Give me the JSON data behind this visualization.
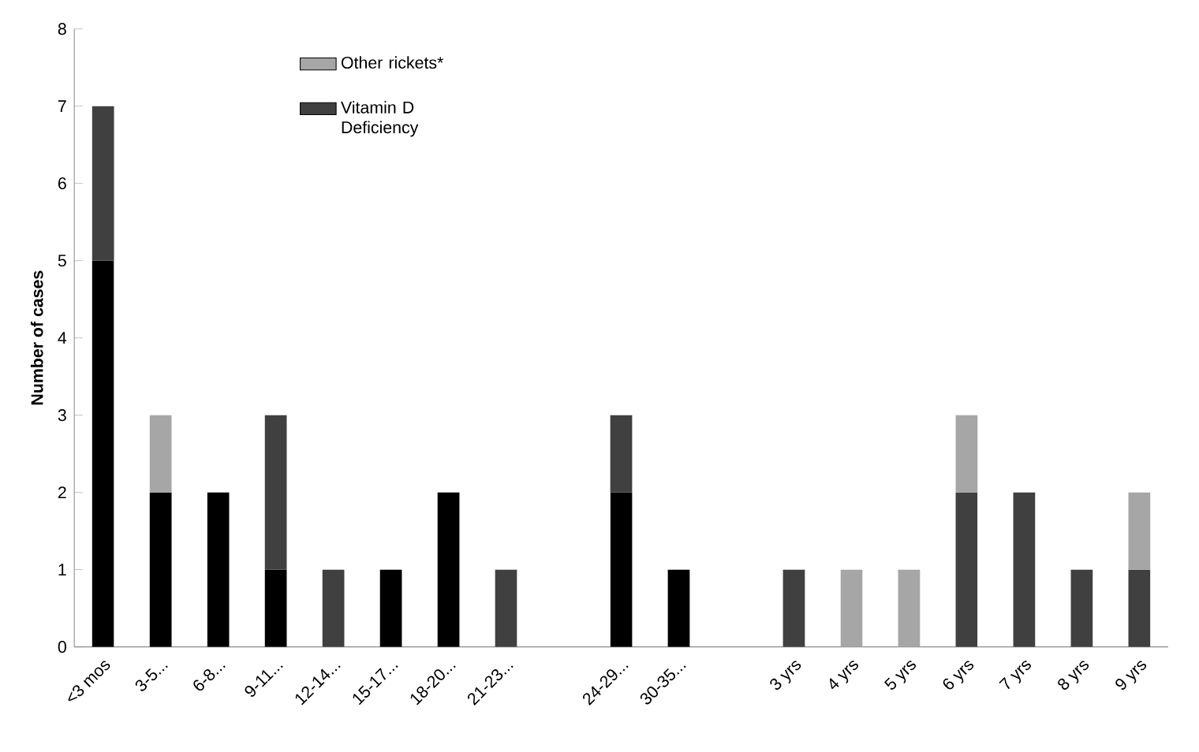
{
  "chart_data": {
    "type": "bar",
    "stacked": true,
    "ylabel": "Number of cases",
    "categories": [
      "<3 mos",
      "3-5...",
      "6-8...",
      "9-11...",
      "12-14...",
      "15-17...",
      "18-20...",
      "21-23...",
      null,
      "24-29...",
      "30-35...",
      null,
      "3 yrs",
      "4 yrs",
      "5 yrs",
      "6 yrs",
      "7 yrs",
      "8 yrs",
      "9 yrs"
    ],
    "series": [
      {
        "color": "#000000",
        "values": [
          5,
          2,
          2,
          1,
          null,
          1,
          2,
          null,
          null,
          2,
          1,
          null,
          null,
          null,
          null,
          null,
          null,
          null,
          null
        ]
      },
      {
        "name": "Vitamin D Deficiency",
        "color": "#404040",
        "values": [
          2,
          null,
          null,
          2,
          1,
          null,
          null,
          1,
          null,
          1,
          null,
          null,
          1,
          null,
          null,
          2,
          2,
          1,
          1
        ]
      },
      {
        "name": "Other rickets*",
        "color": "#a6a6a6",
        "values": [
          null,
          1,
          null,
          null,
          null,
          null,
          null,
          null,
          null,
          null,
          null,
          null,
          null,
          1,
          1,
          1,
          null,
          null,
          1
        ]
      }
    ],
    "ylim": [
      0,
      8
    ],
    "yticks": [
      0,
      1,
      2,
      3,
      4,
      5,
      6,
      7,
      8
    ],
    "legend": "top left"
  }
}
